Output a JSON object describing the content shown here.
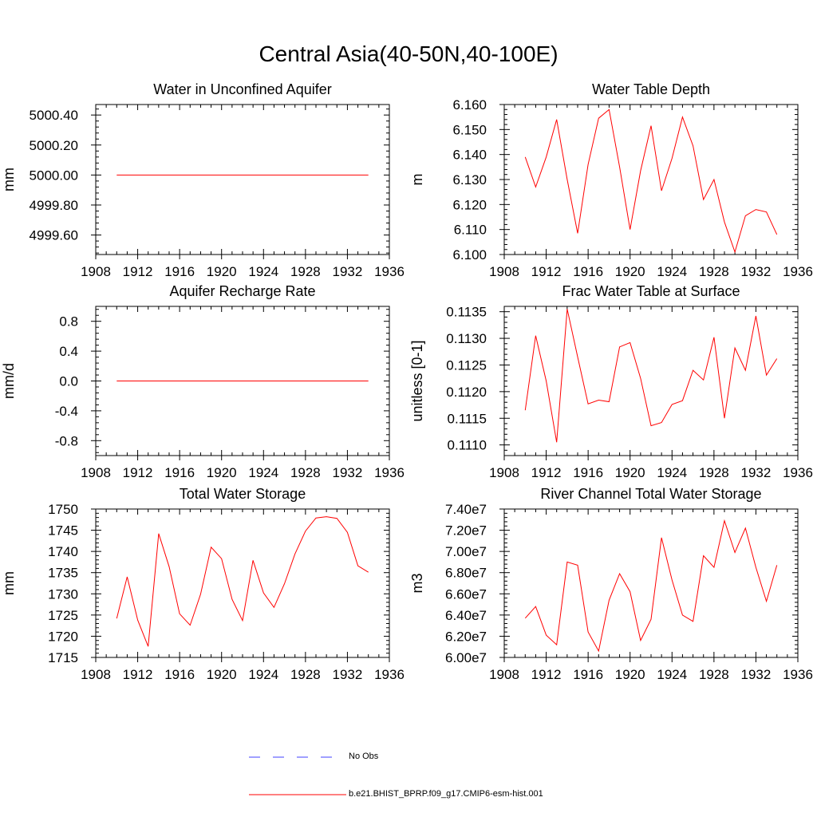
{
  "title": "Central Asia(40-50N,40-100E)",
  "colors": {
    "series": "#ff0000",
    "obs": "#4040ff",
    "axis": "#000000"
  },
  "legend": {
    "obs_label": "No Obs",
    "run_label": "b.e21.BHIST_BPRP.f09_g17.CMIP6-esm-hist.001"
  },
  "chart_data": [
    {
      "type": "line",
      "title": "Water in Unconfined Aquifer",
      "ylabel": "mm",
      "xlim": [
        1908,
        1936
      ],
      "ylim": [
        4999.47,
        5000.47
      ],
      "xticks": [
        1908,
        1912,
        1916,
        1920,
        1924,
        1928,
        1932,
        1936
      ],
      "xtick_labels": [
        "1908",
        "1912",
        "1916",
        "1920",
        "1924",
        "1928",
        "1932",
        "1936"
      ],
      "yticks": [
        4999.6,
        4999.8,
        5000.0,
        5000.2,
        5000.4
      ],
      "ytick_labels": [
        "4999.60",
        "4999.80",
        "5000.00",
        "5000.20",
        "5000.40"
      ],
      "x": [
        1910,
        1911,
        1912,
        1913,
        1914,
        1915,
        1916,
        1917,
        1918,
        1919,
        1920,
        1921,
        1922,
        1923,
        1924,
        1925,
        1926,
        1927,
        1928,
        1929,
        1930,
        1931,
        1932,
        1933,
        1934
      ],
      "values": [
        5000,
        5000,
        5000,
        5000,
        5000,
        5000,
        5000,
        5000,
        5000,
        5000,
        5000,
        5000,
        5000,
        5000,
        5000,
        5000,
        5000,
        5000,
        5000,
        5000,
        5000,
        5000,
        5000,
        5000,
        5000
      ]
    },
    {
      "type": "line",
      "title": "Water Table Depth",
      "ylabel": "m",
      "xlim": [
        1908,
        1936
      ],
      "ylim": [
        6.1,
        6.16
      ],
      "xticks": [
        1908,
        1912,
        1916,
        1920,
        1924,
        1928,
        1932,
        1936
      ],
      "xtick_labels": [
        "1908",
        "1912",
        "1916",
        "1920",
        "1924",
        "1928",
        "1932",
        "1936"
      ],
      "yticks": [
        6.1,
        6.11,
        6.12,
        6.13,
        6.14,
        6.15,
        6.16
      ],
      "ytick_labels": [
        "6.100",
        "6.110",
        "6.120",
        "6.130",
        "6.140",
        "6.150",
        "6.160"
      ],
      "x": [
        1910,
        1911,
        1912,
        1913,
        1914,
        1915,
        1916,
        1917,
        1918,
        1919,
        1920,
        1921,
        1922,
        1923,
        1924,
        1925,
        1926,
        1927,
        1928,
        1929,
        1930,
        1931,
        1932,
        1933,
        1934
      ],
      "values": [
        6.139,
        6.127,
        6.139,
        6.154,
        6.13,
        6.1085,
        6.136,
        6.1545,
        6.158,
        6.135,
        6.11,
        6.1335,
        6.1515,
        6.1255,
        6.1385,
        6.155,
        6.1435,
        6.122,
        6.13,
        6.113,
        6.101,
        6.1155,
        6.118,
        6.117,
        6.108
      ]
    },
    {
      "type": "line",
      "title": "Aquifer Recharge Rate",
      "ylabel": "mm/d",
      "xlim": [
        1908,
        1936
      ],
      "ylim": [
        -1,
        1
      ],
      "xticks": [
        1908,
        1912,
        1916,
        1920,
        1924,
        1928,
        1932,
        1936
      ],
      "xtick_labels": [
        "1908",
        "1912",
        "1916",
        "1920",
        "1924",
        "1928",
        "1932",
        "1936"
      ],
      "yticks": [
        -0.8,
        -0.4,
        0.0,
        0.4,
        0.8
      ],
      "ytick_labels": [
        "-0.8",
        "-0.4",
        "0.0",
        "0.4",
        "0.8"
      ],
      "x": [
        1910,
        1911,
        1912,
        1913,
        1914,
        1915,
        1916,
        1917,
        1918,
        1919,
        1920,
        1921,
        1922,
        1923,
        1924,
        1925,
        1926,
        1927,
        1928,
        1929,
        1930,
        1931,
        1932,
        1933,
        1934
      ],
      "values": [
        0,
        0,
        0,
        0,
        0,
        0,
        0,
        0,
        0,
        0,
        0,
        0,
        0,
        0,
        0,
        0,
        0,
        0,
        0,
        0,
        0,
        0,
        0,
        0,
        0
      ]
    },
    {
      "type": "line",
      "title": "Frac Water Table at Surface",
      "ylabel": "unitless [0-1]",
      "xlim": [
        1908,
        1936
      ],
      "ylim": [
        0.1108,
        0.1136
      ],
      "xticks": [
        1908,
        1912,
        1916,
        1920,
        1924,
        1928,
        1932,
        1936
      ],
      "xtick_labels": [
        "1908",
        "1912",
        "1916",
        "1920",
        "1924",
        "1928",
        "1932",
        "1936"
      ],
      "yticks": [
        0.111,
        0.1115,
        0.112,
        0.1125,
        0.113,
        0.1135
      ],
      "ytick_labels": [
        "0.1110",
        "0.1115",
        "0.1120",
        "0.1125",
        "0.1130",
        "0.1135"
      ],
      "x": [
        1910,
        1911,
        1912,
        1913,
        1914,
        1915,
        1916,
        1917,
        1918,
        1919,
        1920,
        1921,
        1922,
        1923,
        1924,
        1925,
        1926,
        1927,
        1928,
        1929,
        1930,
        1931,
        1932,
        1933,
        1934
      ],
      "values": [
        0.11165,
        0.11305,
        0.1122,
        0.11105,
        0.11355,
        0.11265,
        0.11177,
        0.11184,
        0.11181,
        0.11284,
        0.11292,
        0.11225,
        0.11136,
        0.11142,
        0.11176,
        0.11183,
        0.1124,
        0.11222,
        0.11302,
        0.1115,
        0.11282,
        0.1124,
        0.11342,
        0.11231,
        0.11262
      ]
    },
    {
      "type": "line",
      "title": "Total Water Storage",
      "ylabel": "mm",
      "xlim": [
        1908,
        1936
      ],
      "ylim": [
        1715,
        1750
      ],
      "xticks": [
        1908,
        1912,
        1916,
        1920,
        1924,
        1928,
        1932,
        1936
      ],
      "xtick_labels": [
        "1908",
        "1912",
        "1916",
        "1920",
        "1924",
        "1928",
        "1932",
        "1936"
      ],
      "yticks": [
        1715,
        1720,
        1725,
        1730,
        1735,
        1740,
        1745,
        1750
      ],
      "ytick_labels": [
        "1715",
        "1720",
        "1725",
        "1730",
        "1735",
        "1740",
        "1745",
        "1750"
      ],
      "x": [
        1910,
        1911,
        1912,
        1913,
        1914,
        1915,
        1916,
        1917,
        1918,
        1919,
        1920,
        1921,
        1922,
        1923,
        1924,
        1925,
        1926,
        1927,
        1928,
        1929,
        1930,
        1931,
        1932,
        1933,
        1934
      ],
      "values": [
        1724.2,
        1734,
        1723.8,
        1717.6,
        1744.2,
        1736.4,
        1725.3,
        1722.6,
        1729.9,
        1741,
        1738.3,
        1728.7,
        1723.7,
        1737.9,
        1730.2,
        1726.8,
        1732.4,
        1739.4,
        1744.8,
        1747.9,
        1748.2,
        1747.8,
        1744.5,
        1736.6,
        1735.1
      ]
    },
    {
      "type": "line",
      "title": "River Channel Total Water Storage",
      "ylabel": "m3",
      "xlim": [
        1908,
        1936
      ],
      "ylim": [
        60000000,
        74000000
      ],
      "xticks": [
        1908,
        1912,
        1916,
        1920,
        1924,
        1928,
        1932,
        1936
      ],
      "xtick_labels": [
        "1908",
        "1912",
        "1916",
        "1920",
        "1924",
        "1928",
        "1932",
        "1936"
      ],
      "yticks": [
        60000000,
        62000000,
        64000000,
        66000000,
        68000000,
        70000000,
        72000000,
        74000000
      ],
      "ytick_labels": [
        "6.00e7",
        "6.20e7",
        "6.40e7",
        "6.60e7",
        "6.80e7",
        "7.00e7",
        "7.20e7",
        "7.40e7"
      ],
      "x": [
        1910,
        1911,
        1912,
        1913,
        1914,
        1915,
        1916,
        1917,
        1918,
        1919,
        1920,
        1921,
        1922,
        1923,
        1924,
        1925,
        1926,
        1927,
        1928,
        1929,
        1930,
        1931,
        1932,
        1933,
        1934
      ],
      "values": [
        63700000,
        64800000,
        62100000,
        61200000,
        69000000,
        68700000,
        62400000,
        60600000,
        65400000,
        67900000,
        66200000,
        61600000,
        63600000,
        71300000,
        67300000,
        64000000,
        63400000,
        69600000,
        68500000,
        72900000,
        69900000,
        72200000,
        68500000,
        65300000,
        68700000
      ]
    }
  ]
}
